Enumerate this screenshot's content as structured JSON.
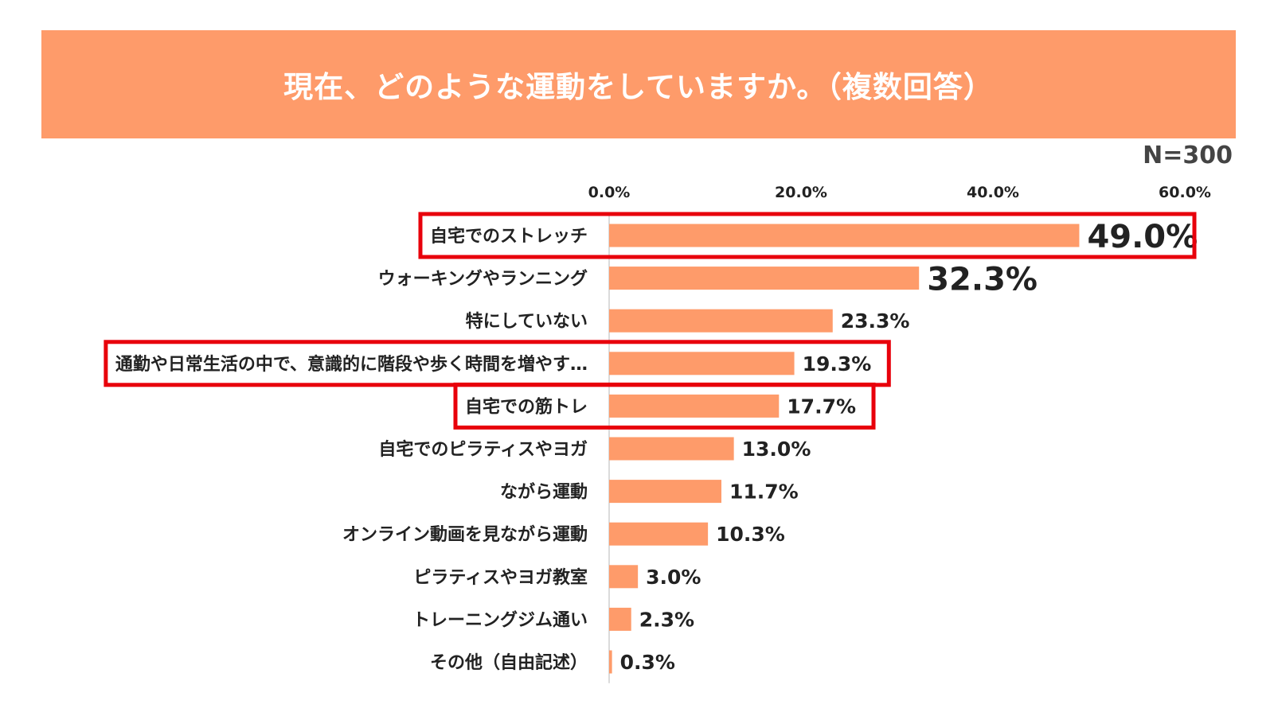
{
  "header": {
    "title": "現在、どのような運動をしていますか。（複数回答）",
    "sample_size": "N=300"
  },
  "colors": {
    "bar": "#fe9b6a",
    "highlight": "#e8000b",
    "text": "#222222",
    "axis": "#cfcfcf"
  },
  "chart_data": {
    "type": "bar",
    "orientation": "horizontal",
    "title": "現在、どのような運動をしていますか。（複数回答）",
    "xlim": [
      0,
      60
    ],
    "ticks": [
      "0.0%",
      "20.0%",
      "40.0%",
      "60.0%"
    ],
    "tick_values": [
      0,
      20,
      40,
      60
    ],
    "grid": false,
    "categories": [
      "自宅でのストレッチ",
      "ウォーキングやランニング",
      "特にしていない",
      "通勤や日常生活の中で、意識的に階段や歩く時間を増やす…",
      "自宅での筋トレ",
      "自宅でのピラティスやヨガ",
      "ながら運動",
      "オンライン動画を見ながら運動",
      "ピラティスやヨガ教室",
      "トレーニングジム通い",
      "その他（自由記述）"
    ],
    "values": [
      49.0,
      32.3,
      23.3,
      19.3,
      17.7,
      13.0,
      11.7,
      10.3,
      3.0,
      2.3,
      0.3
    ],
    "value_labels": [
      "49.0%",
      "32.3%",
      "23.3%",
      "19.3%",
      "17.7%",
      "13.0%",
      "11.7%",
      "10.3%",
      "3.0%",
      "2.3%",
      "0.3%"
    ],
    "emphasized_labels": [
      0,
      1
    ],
    "highlighted_rows": [
      0,
      3,
      4
    ]
  }
}
